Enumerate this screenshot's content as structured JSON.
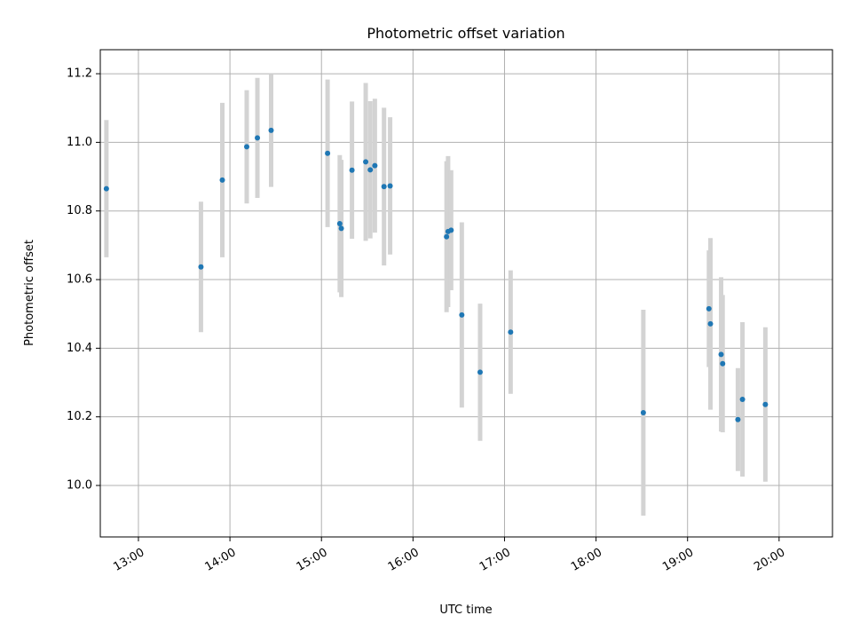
{
  "chart_data": {
    "type": "scatter",
    "title": "Photometric offset variation",
    "xlabel": "UTC time",
    "ylabel": "Photometric offset",
    "x_ticks": [
      "13:00",
      "14:00",
      "15:00",
      "16:00",
      "17:00",
      "18:00",
      "19:00",
      "20:00"
    ],
    "y_ticks": [
      "10.0",
      "10.2",
      "10.4",
      "10.6",
      "10.8",
      "11.0",
      "11.2"
    ],
    "xlim": [
      "12:35",
      "20:35"
    ],
    "ylim": [
      9.85,
      11.27
    ],
    "grid": true,
    "series": [
      {
        "colors": {
          "point": "#1f77b4",
          "errorbar": "#d3d3d3"
        },
        "points": [
          {
            "x": "12:39",
            "y": 10.865,
            "yerr": 0.2
          },
          {
            "x": "13:41",
            "y": 10.637,
            "yerr": 0.19
          },
          {
            "x": "13:55",
            "y": 10.89,
            "yerr": 0.225
          },
          {
            "x": "14:11",
            "y": 10.987,
            "yerr": 0.165
          },
          {
            "x": "14:18",
            "y": 11.013,
            "yerr": 0.175
          },
          {
            "x": "14:27",
            "y": 11.035,
            "yerr": 0.165
          },
          {
            "x": "15:04",
            "y": 10.968,
            "yerr": 0.215
          },
          {
            "x": "15:12",
            "y": 10.763,
            "yerr": 0.2
          },
          {
            "x": "15:13",
            "y": 10.749,
            "yerr": 0.2
          },
          {
            "x": "15:20",
            "y": 10.919,
            "yerr": 0.2
          },
          {
            "x": "15:29",
            "y": 10.943,
            "yerr": 0.23
          },
          {
            "x": "15:32",
            "y": 10.92,
            "yerr": 0.2
          },
          {
            "x": "15:35",
            "y": 10.932,
            "yerr": 0.195
          },
          {
            "x": "15:41",
            "y": 10.871,
            "yerr": 0.23
          },
          {
            "x": "15:45",
            "y": 10.873,
            "yerr": 0.2
          },
          {
            "x": "16:22",
            "y": 10.725,
            "yerr": 0.22
          },
          {
            "x": "16:23",
            "y": 10.74,
            "yerr": 0.22
          },
          {
            "x": "16:25",
            "y": 10.744,
            "yerr": 0.175
          },
          {
            "x": "16:32",
            "y": 10.497,
            "yerr": 0.27
          },
          {
            "x": "16:44",
            "y": 10.33,
            "yerr": 0.2
          },
          {
            "x": "17:04",
            "y": 10.447,
            "yerr": 0.18
          },
          {
            "x": "18:31",
            "y": 10.212,
            "yerr": 0.3
          },
          {
            "x": "19:14",
            "y": 10.515,
            "yerr": 0.17
          },
          {
            "x": "19:15",
            "y": 10.471,
            "yerr": 0.25
          },
          {
            "x": "19:22",
            "y": 10.382,
            "yerr": 0.225
          },
          {
            "x": "19:23",
            "y": 10.355,
            "yerr": 0.2
          },
          {
            "x": "19:33",
            "y": 10.192,
            "yerr": 0.15
          },
          {
            "x": "19:36",
            "y": 10.251,
            "yerr": 0.225
          },
          {
            "x": "19:51",
            "y": 10.236,
            "yerr": 0.225
          }
        ]
      }
    ]
  }
}
